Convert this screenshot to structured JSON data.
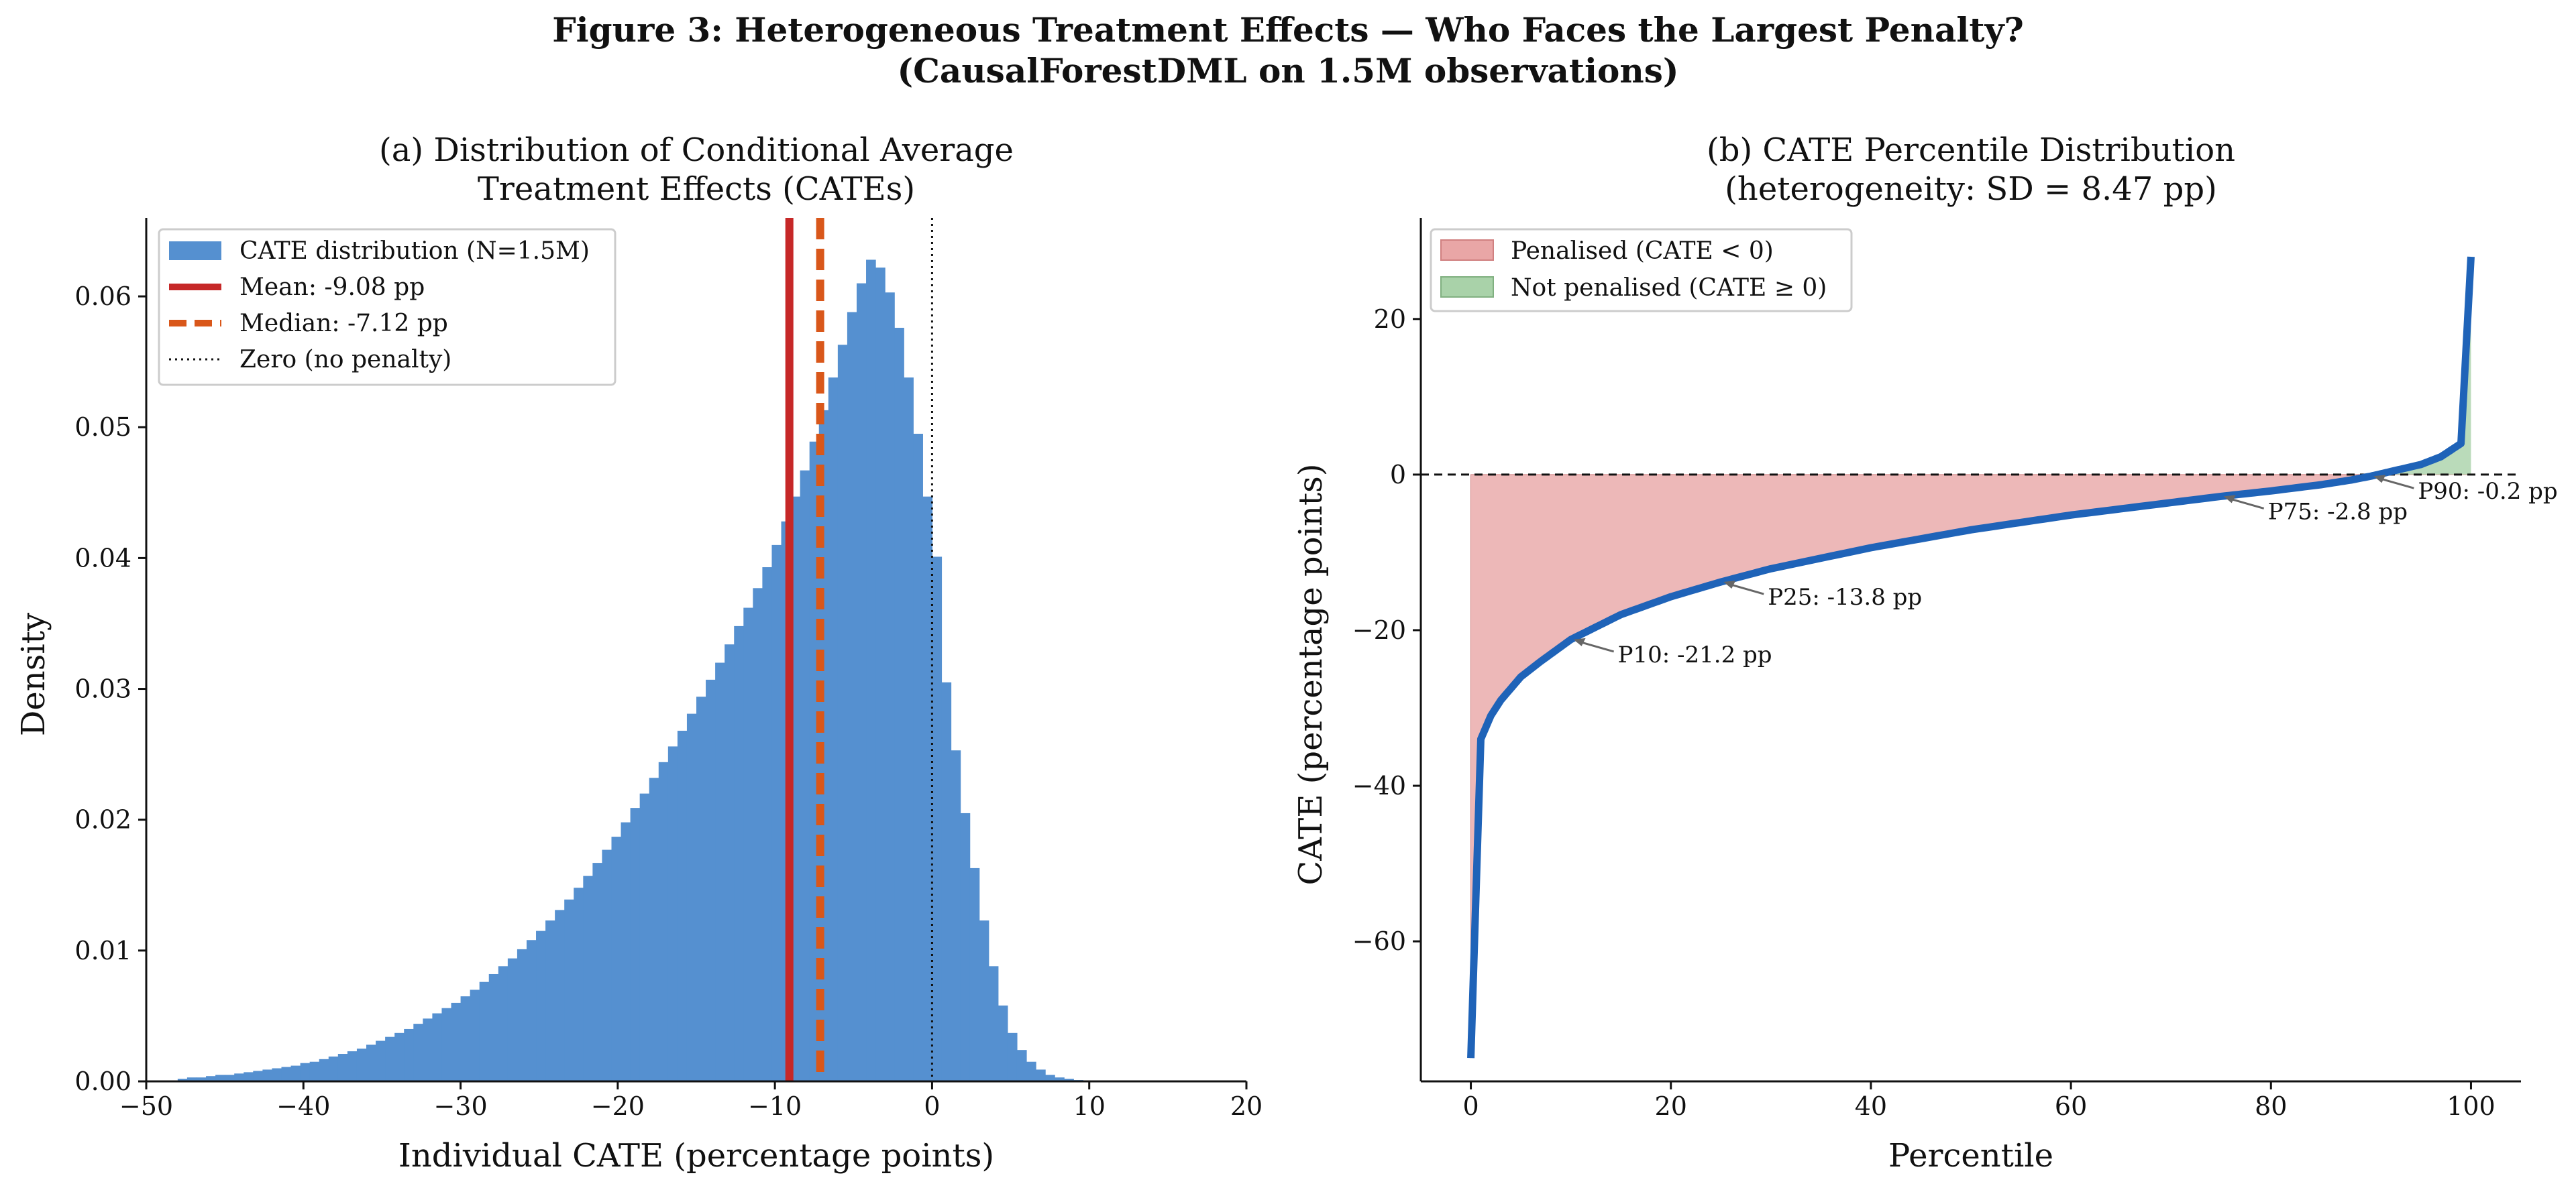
{
  "figure": {
    "title_line1": "Figure 3: Heterogeneous Treatment Effects — Who Faces the Largest Penalty?",
    "title_line2": "(CausalForestDML on 1.5M observations)"
  },
  "colors": {
    "hist": "#5590d0",
    "mean": "#c62828",
    "median": "#d9571a",
    "curve": "#1f63b8",
    "penalised": "#e9a6a6",
    "not_penalised": "#a9d2a9"
  },
  "chart_data": [
    {
      "type": "bar",
      "title_line1": "(a) Distribution of Conditional Average",
      "title_line2": "Treatment Effects (CATEs)",
      "xlabel": "Individual CATE (percentage points)",
      "ylabel": "Density",
      "xlim": [
        -50,
        20
      ],
      "ylim": [
        0,
        0.066
      ],
      "xticks": [
        -50,
        -40,
        -30,
        -20,
        -10,
        0,
        10,
        20
      ],
      "xtick_labels": [
        "−50",
        "−40",
        "−30",
        "−20",
        "−10",
        "0",
        "10",
        "20"
      ],
      "yticks": [
        0,
        0.01,
        0.02,
        0.03,
        0.04,
        0.05,
        0.06
      ],
      "ytick_labels": [
        "0.00",
        "0.01",
        "0.02",
        "0.03",
        "0.04",
        "0.05",
        "0.06"
      ],
      "bin_start": -48,
      "bin_width": 0.6,
      "densities": [
        0.0002,
        0.0003,
        0.0003,
        0.0004,
        0.0005,
        0.0005,
        0.0006,
        0.0007,
        0.0008,
        0.0009,
        0.001,
        0.0011,
        0.0012,
        0.0014,
        0.0015,
        0.0017,
        0.0019,
        0.0021,
        0.0023,
        0.0025,
        0.0028,
        0.0031,
        0.0034,
        0.0037,
        0.004,
        0.0044,
        0.0048,
        0.0052,
        0.0056,
        0.006,
        0.0065,
        0.007,
        0.0076,
        0.0082,
        0.0088,
        0.0094,
        0.0101,
        0.0108,
        0.0115,
        0.0123,
        0.0131,
        0.0139,
        0.0148,
        0.0157,
        0.0167,
        0.0177,
        0.0187,
        0.0198,
        0.0209,
        0.022,
        0.0232,
        0.0244,
        0.0256,
        0.0268,
        0.0281,
        0.0294,
        0.0307,
        0.032,
        0.0334,
        0.0348,
        0.0362,
        0.0377,
        0.0393,
        0.041,
        0.0428,
        0.0447,
        0.0467,
        0.0489,
        0.0513,
        0.0538,
        0.0563,
        0.0588,
        0.061,
        0.0628,
        0.0622,
        0.0603,
        0.0576,
        0.0538,
        0.0495,
        0.0447,
        0.0401,
        0.0305,
        0.0253,
        0.0205,
        0.0163,
        0.0123,
        0.0088,
        0.0058,
        0.0037,
        0.0024,
        0.0015,
        0.0009,
        0.0005,
        0.0003,
        0.0002,
        0.0001
      ],
      "vlines": [
        {
          "label": "Mean: -9.08 pp",
          "x": -9.08,
          "style": "solid"
        },
        {
          "label": "Median: -7.12 pp",
          "x": -7.12,
          "style": "dashed"
        },
        {
          "label": "Zero (no penalty)",
          "x": 0,
          "style": "dotted"
        }
      ],
      "legend_hist": "CATE distribution (N=1.5M)",
      "legend_position": "upper-left"
    },
    {
      "type": "line",
      "title_line1": "(b) CATE Percentile Distribution",
      "title_line2": "(heterogeneity: SD = 8.47 pp)",
      "xlabel": "Percentile",
      "ylabel": "CATE (percentage points)",
      "xlim": [
        -5,
        105
      ],
      "ylim": [
        -78,
        33
      ],
      "xticks": [
        0,
        20,
        40,
        60,
        80,
        100
      ],
      "xtick_labels": [
        "0",
        "20",
        "40",
        "60",
        "80",
        "100"
      ],
      "yticks": [
        -60,
        -40,
        -20,
        0,
        20
      ],
      "ytick_labels": [
        "−60",
        "−40",
        "−20",
        "0",
        "20"
      ],
      "x": [
        0,
        1,
        2,
        3,
        5,
        7,
        10,
        15,
        20,
        25,
        30,
        40,
        50,
        60,
        70,
        75,
        80,
        85,
        88,
        90,
        92,
        95,
        97,
        99,
        100
      ],
      "y": [
        -75,
        -34,
        -31,
        -29,
        -26,
        -24,
        -21.2,
        -18,
        -15.7,
        -13.8,
        -12.1,
        -9.4,
        -7.1,
        -5.2,
        -3.6,
        -2.8,
        -2.1,
        -1.3,
        -0.7,
        -0.2,
        0.4,
        1.3,
        2.3,
        4,
        28
      ],
      "fill_penalised_label": "Penalised (CATE < 0)",
      "fill_not_penalised_label": "Not penalised (CATE ≥ 0)",
      "annotations": [
        {
          "label": "P10: -21.2 pp",
          "x": 10,
          "y": -21.2
        },
        {
          "label": "P25: -13.8 pp",
          "x": 25,
          "y": -13.8
        },
        {
          "label": "P75: -2.8 pp",
          "x": 75,
          "y": -2.8
        },
        {
          "label": "P90: -0.2 pp",
          "x": 90,
          "y": -0.2
        }
      ],
      "legend_position": "upper-left"
    }
  ]
}
